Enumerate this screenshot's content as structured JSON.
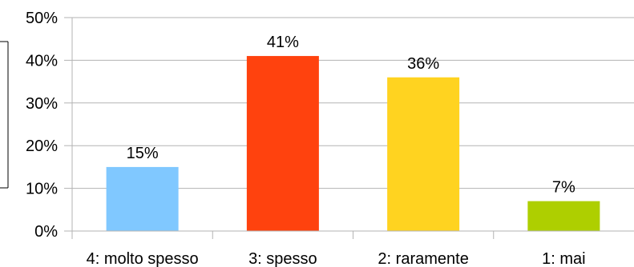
{
  "chart_data": {
    "type": "bar",
    "categories": [
      "4: molto spesso",
      "3: spesso",
      "2: raramente",
      "1: mai"
    ],
    "values": [
      15,
      41,
      36,
      7
    ],
    "data_labels": [
      "15%",
      "41%",
      "36%",
      "7%"
    ],
    "colors": [
      "#80c8ff",
      "#ff420e",
      "#ffd320",
      "#aecf00"
    ],
    "y_ticks": [
      "0%",
      "10%",
      "20%",
      "30%",
      "40%",
      "50%"
    ],
    "ylim": [
      0,
      50
    ],
    "grid": true,
    "legend": "none"
  }
}
